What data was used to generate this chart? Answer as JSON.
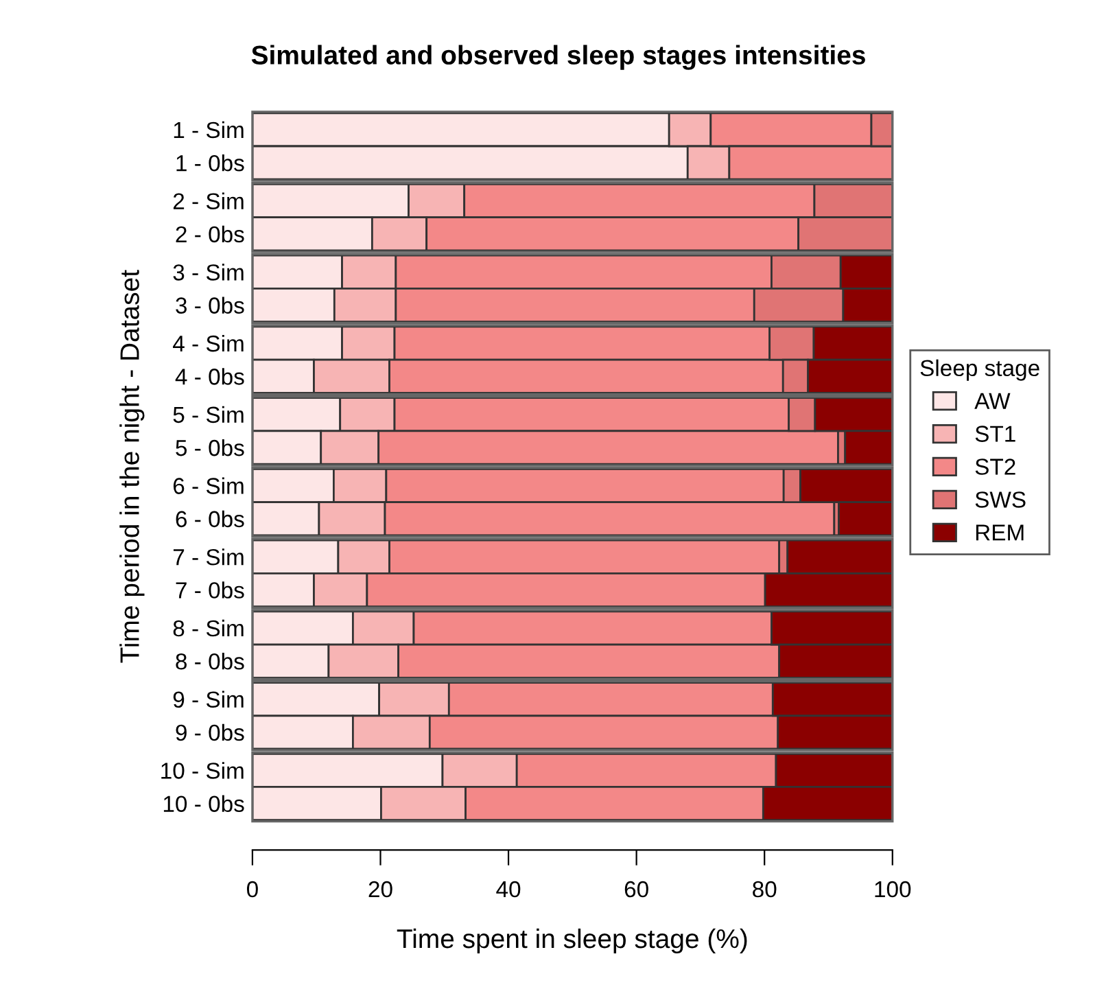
{
  "chart_data": {
    "type": "bar",
    "orientation": "horizontal",
    "stacked": true,
    "title": "Simulated and observed sleep stages intensities",
    "xlabel": "Time spent in sleep stage (%)",
    "ylabel": "Time period in the night - Dataset",
    "legend_title": "Sleep stage",
    "legend": "right",
    "categories": [
      "1 - Sim",
      "1 - 0bs",
      "2 - Sim",
      "2 - 0bs",
      "3 - Sim",
      "3 - 0bs",
      "4 - Sim",
      "4 - 0bs",
      "5 - Sim",
      "5 - 0bs",
      "6 - Sim",
      "6 - 0bs",
      "7 - Sim",
      "7 - 0bs",
      "8 - Sim",
      "8 - 0bs",
      "9 - Sim",
      "9 - 0bs",
      "10 - Sim",
      "10 - 0bs"
    ],
    "xlim": [
      0,
      100
    ],
    "xticks": [
      0,
      20,
      40,
      60,
      80,
      100
    ],
    "grid": false,
    "series": [
      {
        "name": "AW",
        "color": "#fde6e6",
        "values": [
          65.1,
          68.0,
          24.4,
          18.7,
          14.0,
          12.8,
          14.0,
          9.6,
          13.7,
          10.7,
          12.7,
          10.4,
          13.4,
          9.6,
          15.7,
          11.9,
          19.8,
          15.7,
          29.7,
          20.1
        ]
      },
      {
        "name": "ST1",
        "color": "#f7b4b4",
        "values": [
          6.5,
          6.5,
          8.7,
          8.5,
          8.4,
          9.6,
          8.2,
          11.8,
          8.5,
          9.0,
          8.2,
          10.3,
          8.0,
          8.3,
          9.5,
          10.9,
          10.9,
          12.0,
          11.6,
          13.2
        ]
      },
      {
        "name": "ST2",
        "color": "#f38888",
        "values": [
          25.1,
          25.5,
          54.7,
          58.1,
          58.7,
          56.0,
          58.6,
          61.5,
          61.6,
          71.8,
          62.1,
          70.2,
          60.9,
          62.2,
          55.9,
          59.5,
          50.6,
          54.4,
          40.5,
          46.5
        ]
      },
      {
        "name": "SWS",
        "color": "#e07474",
        "values": [
          3.3,
          0,
          12.2,
          14.7,
          10.8,
          13.9,
          6.9,
          3.9,
          4.1,
          1.1,
          2.6,
          0.7,
          1.3,
          0,
          0,
          0,
          0,
          0,
          0,
          0
        ]
      },
      {
        "name": "REM",
        "color": "#8b0000",
        "values": [
          0,
          0,
          0,
          0,
          8.1,
          7.7,
          12.3,
          13.2,
          12.1,
          7.4,
          14.4,
          8.4,
          16.4,
          19.9,
          18.9,
          17.7,
          18.7,
          17.9,
          18.2,
          20.2
        ]
      }
    ]
  }
}
